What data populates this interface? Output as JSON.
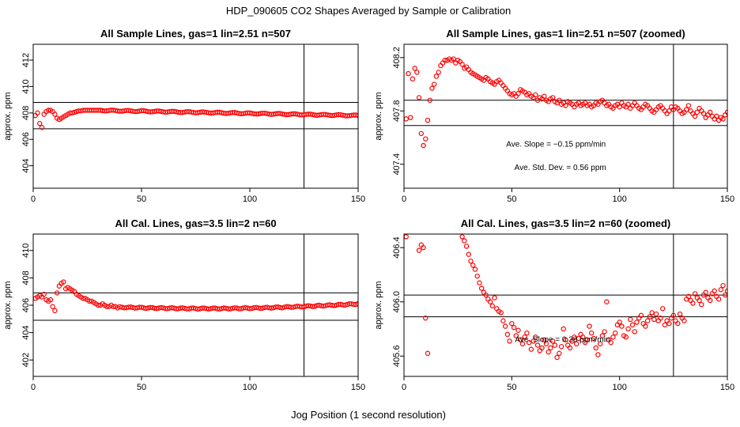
{
  "figure": {
    "title": "HDP_090605  CO2 Shapes Averaged by Sample or Calibration",
    "xlabel": "Jog Position (1 second resolution)"
  },
  "colors": {
    "points": "#ff0000",
    "lines": "#000000",
    "background": "#ffffff"
  },
  "chart_data": [
    {
      "type": "scatter",
      "title": "All Sample Lines, gas=1 lin=2.51 n=507",
      "ylabel": "approx. ppm",
      "xlim": [
        0,
        150
      ],
      "ylim": [
        402.3,
        413.2
      ],
      "xticks": [
        0,
        50,
        100,
        150
      ],
      "yticks": [
        404,
        406,
        408,
        410,
        412
      ],
      "ytick_labels": [
        "404",
        "406",
        "408",
        "410",
        "412"
      ],
      "hlines": [
        408.8,
        406.8
      ],
      "vline": 125,
      "annotations": [],
      "series": [
        {
          "x": [],
          "y": []
        }
      ]
    },
    {
      "type": "scatter",
      "title": "All Sample Lines, gas=1 lin=2.51 n=507 (zoomed)",
      "ylabel": "approx. ppm",
      "xlim": [
        0,
        150
      ],
      "ylim": [
        407.22,
        408.3
      ],
      "xticks": [
        0,
        50,
        100,
        150
      ],
      "yticks": [
        407.4,
        407.8,
        408.2
      ],
      "ytick_labels": [
        "407.4",
        "407.8",
        "408.2"
      ],
      "hlines": [
        407.88,
        407.69
      ],
      "vline": 125,
      "annotations": [
        {
          "text": "Ave. Slope =  −0.15  ppm/min",
          "x": 70.5,
          "y": 407.545
        },
        {
          "text": "Ave. Std. Dev. =  0.56  ppm",
          "x": 72.5,
          "y": 407.37
        }
      ],
      "series": [
        {
          "x": [],
          "y": []
        }
      ]
    },
    {
      "type": "scatter",
      "title": "All Cal. Lines, gas=3.5 lin=2 n=60",
      "ylabel": "approx. ppm",
      "xlim": [
        0,
        150
      ],
      "ylim": [
        400.8,
        411.2
      ],
      "xticks": [
        0,
        50,
        100,
        150
      ],
      "yticks": [
        402,
        404,
        406,
        408,
        410
      ],
      "ytick_labels": [
        "402",
        "404",
        "406",
        "408",
        "410"
      ],
      "hlines": [
        406.9,
        404.9
      ],
      "vline": 125,
      "annotations": [],
      "series": [
        {
          "x": [],
          "y": []
        }
      ]
    },
    {
      "type": "scatter",
      "title": "All Cal. Lines, gas=3.5 lin=2 n=60 (zoomed)",
      "ylabel": "approx. ppm",
      "xlim": [
        0,
        150
      ],
      "ylim": [
        405.45,
        406.5
      ],
      "xticks": [
        0,
        50,
        100,
        150
      ],
      "yticks": [
        405.6,
        406.0,
        406.4
      ],
      "ytick_labels": [
        "405.6",
        "406.0",
        "406.4"
      ],
      "hlines": [
        406.05,
        405.89
      ],
      "vline": 125,
      "annotations": [
        {
          "text": "Ave. Slope =  0.38  ppm/min",
          "x": 73.5,
          "y": 405.718
        }
      ],
      "series": [
        {
          "x": [],
          "y": []
        }
      ]
    }
  ]
}
